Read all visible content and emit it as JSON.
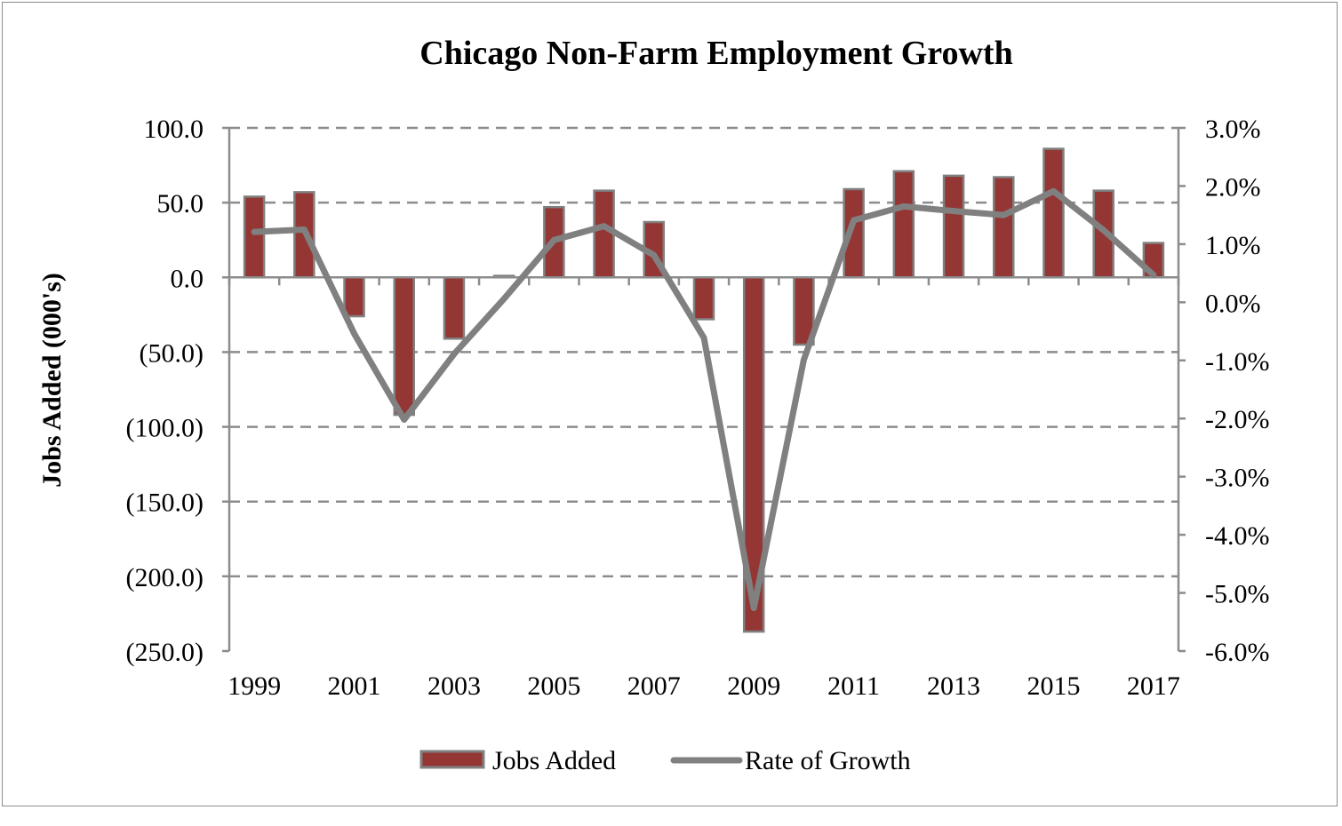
{
  "chart_data": {
    "type": "bar+line",
    "title": "Chicago Non-Farm Employment Growth",
    "ylabel": "Jobs Added (000's)",
    "categories": [
      "1999",
      "2000",
      "2001",
      "2002",
      "2003",
      "2004",
      "2005",
      "2006",
      "2007",
      "2008",
      "2009",
      "2010",
      "2011",
      "2012",
      "2013",
      "2014",
      "2015",
      "2016",
      "2017"
    ],
    "x_tick_labels": [
      "1999",
      "2001",
      "2003",
      "2005",
      "2007",
      "2009",
      "2011",
      "2013",
      "2015",
      "2017"
    ],
    "series": [
      {
        "name": "Jobs Added",
        "type": "bar",
        "axis": "left",
        "color": "#943634",
        "values": [
          54,
          57,
          -26,
          -92,
          -41,
          1,
          47,
          58,
          37,
          -28,
          -237,
          -45,
          59,
          71,
          68,
          67,
          86,
          58,
          23
        ]
      },
      {
        "name": "Rate of Growth",
        "type": "line",
        "axis": "right",
        "color": "#808080",
        "values": [
          1.21,
          1.25,
          -0.54,
          -2.02,
          -0.89,
          0.06,
          1.07,
          1.31,
          0.81,
          -0.61,
          -5.26,
          -0.99,
          1.41,
          1.65,
          1.57,
          1.5,
          1.91,
          1.24,
          0.47
        ]
      }
    ],
    "left_axis": {
      "ylim": [
        -250,
        100
      ],
      "ticks": [
        100,
        50,
        0,
        -50,
        -100,
        -150,
        -200,
        -250
      ],
      "tick_labels": [
        "100.0",
        "50.0",
        "0.0",
        "(50.0)",
        "(100.0)",
        "(150.0)",
        "(200.0)",
        "(250.0)"
      ]
    },
    "right_axis": {
      "ylim": [
        -6,
        3
      ],
      "ticks": [
        3,
        2,
        1,
        0,
        -1,
        -2,
        -3,
        -4,
        -5,
        -6
      ],
      "tick_labels": [
        "3.0%",
        "2.0%",
        "1.0%",
        "0.0%",
        "-1.0%",
        "-2.0%",
        "-3.0%",
        "-4.0%",
        "-5.0%",
        "-6.0%"
      ]
    },
    "grid": true,
    "legend": {
      "position": "bottom",
      "entries": [
        "Jobs Added",
        "Rate of Growth"
      ]
    }
  }
}
